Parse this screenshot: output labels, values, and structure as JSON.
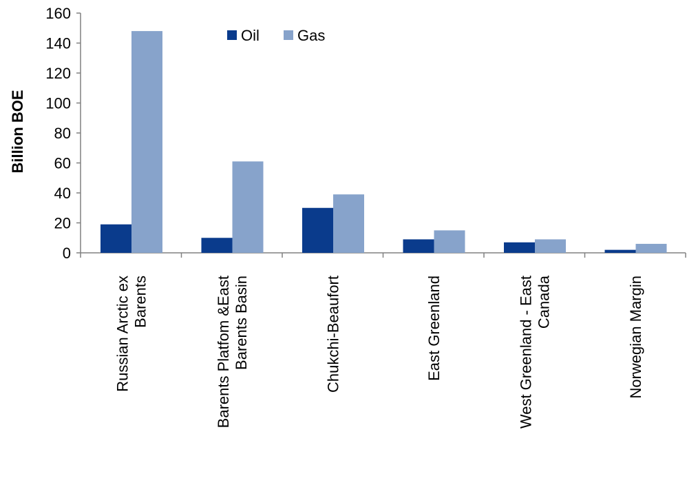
{
  "chart_data": {
    "type": "bar",
    "title": "",
    "xlabel": "",
    "ylabel": "Billion BOE",
    "ylim": [
      0,
      160
    ],
    "yticks": [
      0,
      20,
      40,
      60,
      80,
      100,
      120,
      140,
      160
    ],
    "grid": false,
    "legend_position": "top-center",
    "categories": [
      [
        "Russian Arctic ex",
        "Barents"
      ],
      [
        "Barents Platfom &East",
        "Barents Basin"
      ],
      [
        "Chukchi-Beaufort"
      ],
      [
        "East Greenland"
      ],
      [
        "West Greenland  - East",
        "Canada"
      ],
      [
        "Norwegian Margin"
      ]
    ],
    "series": [
      {
        "name": "Oil",
        "color": "#0a3b8c",
        "values": [
          19,
          10,
          30,
          9,
          7,
          2
        ]
      },
      {
        "name": "Gas",
        "color": "#87a3cb",
        "values": [
          148,
          61,
          39,
          15,
          9,
          6
        ]
      }
    ]
  }
}
